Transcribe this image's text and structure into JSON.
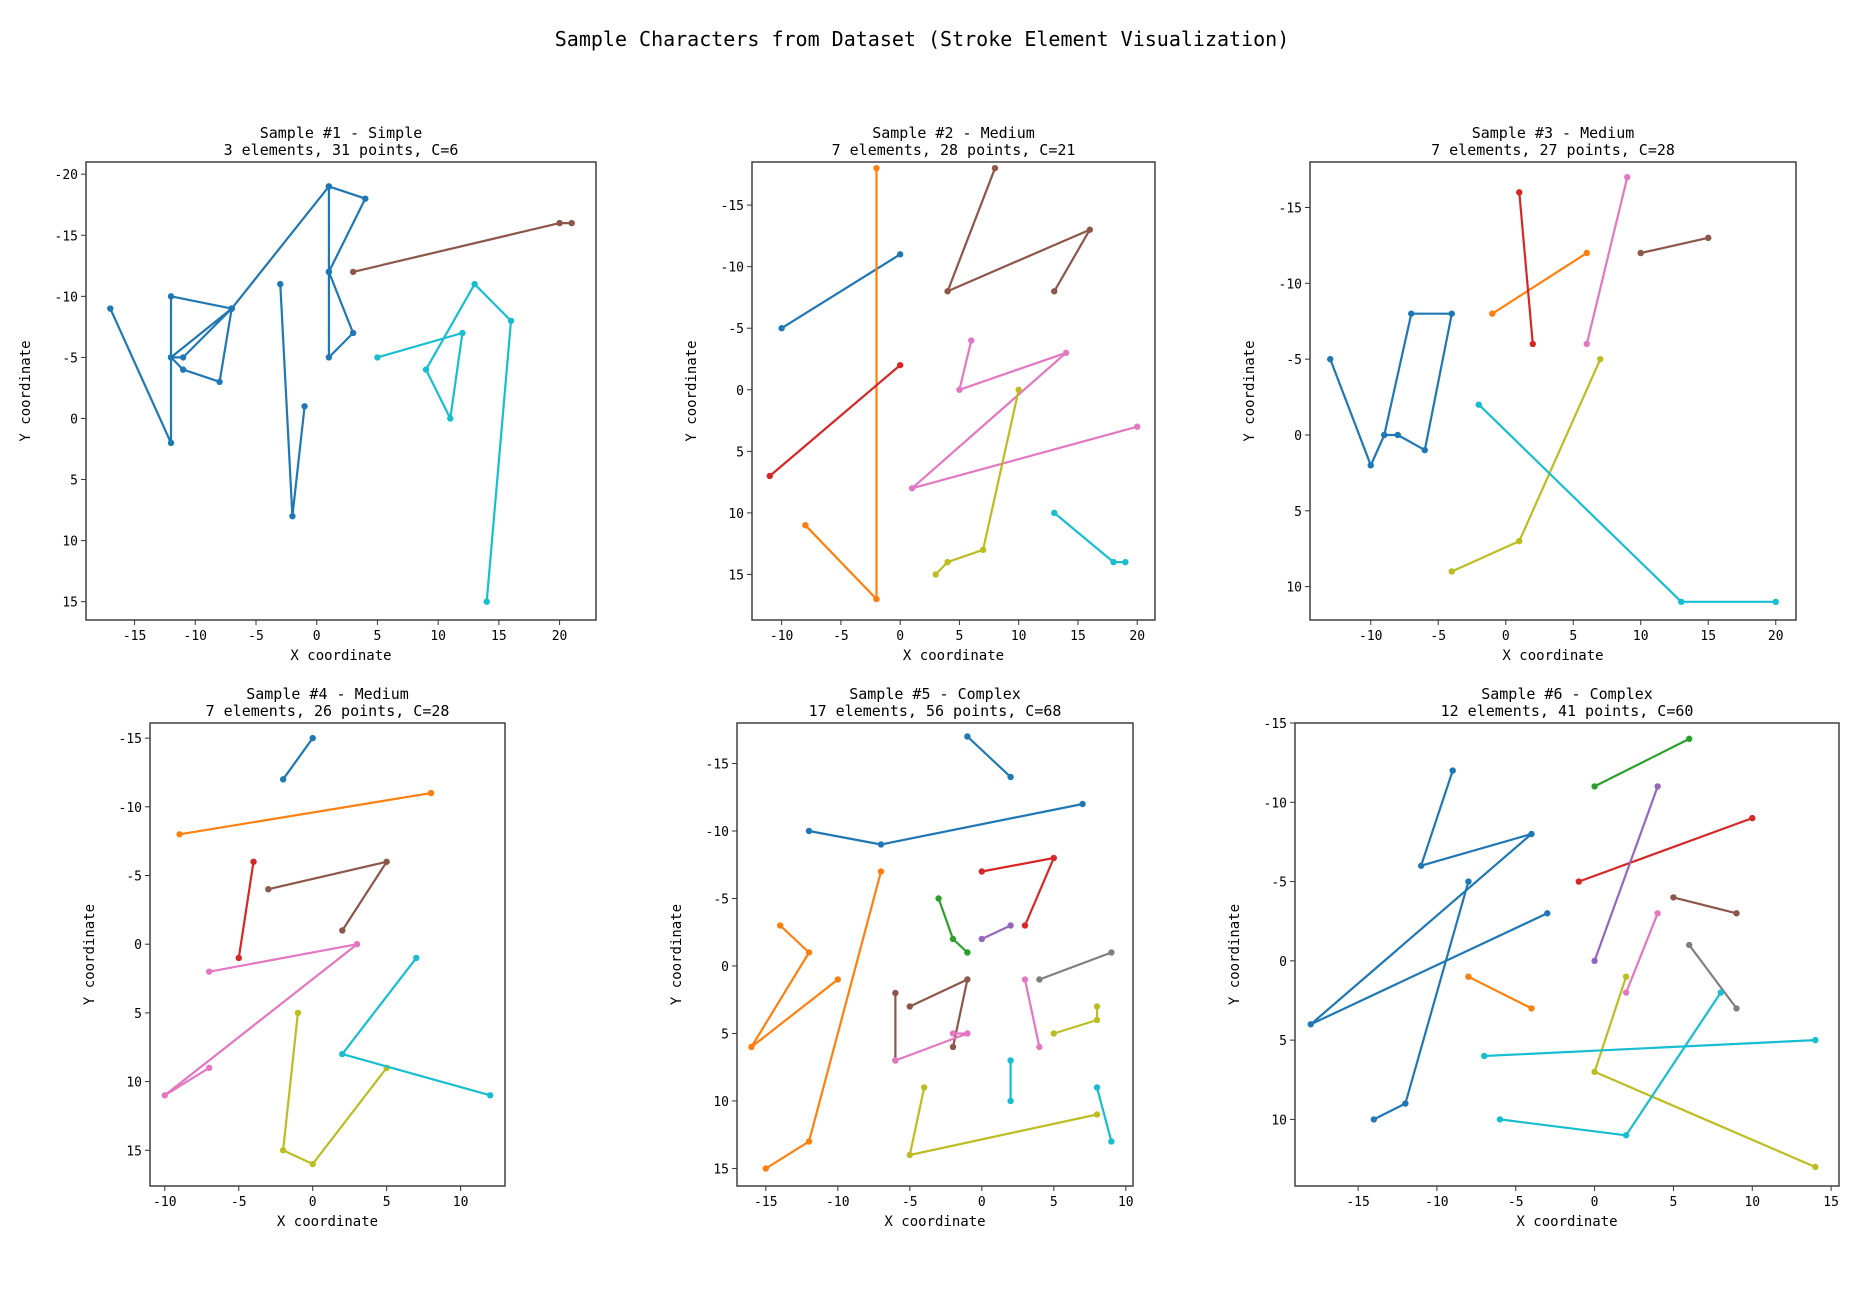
{
  "figure": {
    "title": "Sample Characters from Dataset (Stroke Element Visualization)"
  },
  "chart_data": [
    {
      "type": "line",
      "title": "Sample #1 - Simple",
      "subtitle": "3 elements, 31 points, C=6",
      "xlabel": "X coordinate",
      "ylabel": "Y coordinate",
      "xlim": [
        -19,
        23
      ],
      "ylim": [
        -21,
        16.5
      ],
      "y_inverted": true,
      "xticks": [
        -15,
        -10,
        -5,
        0,
        5,
        10,
        15,
        20
      ],
      "yticks": [
        -20,
        -15,
        -10,
        -5,
        0,
        5,
        10,
        15
      ],
      "series": [
        {
          "color": "#1f77b4",
          "points": [
            [
              -17,
              -9
            ],
            [
              -12,
              2
            ],
            [
              -12,
              -10
            ],
            [
              -7,
              -9
            ],
            [
              -12,
              -5
            ],
            [
              -11,
              -5
            ],
            [
              -7,
              -9
            ],
            [
              1,
              -19
            ],
            [
              4,
              -18
            ],
            [
              1,
              -12
            ],
            [
              1,
              -5
            ],
            [
              3,
              -7
            ],
            [
              1,
              -12
            ],
            [
              1,
              -19
            ],
            [
              -7,
              -9
            ],
            [
              -8,
              -3
            ],
            [
              -11,
              -4
            ],
            [
              -12,
              -5
            ]
          ]
        },
        {
          "color": "#1f77b4",
          "points": [
            [
              -3,
              -11
            ],
            [
              -2,
              8
            ],
            [
              -1,
              -1
            ]
          ]
        },
        {
          "color": "#17becf",
          "points": [
            [
              5,
              -5
            ],
            [
              12,
              -7
            ],
            [
              11,
              0
            ],
            [
              9,
              -4
            ],
            [
              13,
              -11
            ],
            [
              16,
              -8
            ],
            [
              14,
              15
            ]
          ]
        },
        {
          "color": "#8c564b",
          "points": [
            [
              3,
              -12
            ],
            [
              20,
              -16
            ],
            [
              21,
              -16
            ]
          ]
        }
      ]
    },
    {
      "type": "line",
      "title": "Sample #2 - Medium",
      "subtitle": "7 elements, 28 points, C=21",
      "xlabel": "X coordinate",
      "ylabel": "Y coordinate",
      "xlim": [
        -12.5,
        21.5
      ],
      "ylim": [
        -18.5,
        18.7
      ],
      "y_inverted": true,
      "xticks": [
        -10,
        -5,
        0,
        5,
        10,
        15,
        20
      ],
      "yticks": [
        -15,
        -10,
        -5,
        0,
        5,
        10,
        15
      ],
      "series": [
        {
          "color": "#1f77b4",
          "points": [
            [
              -10,
              -5
            ],
            [
              0,
              -11
            ]
          ]
        },
        {
          "color": "#ff7f0e",
          "points": [
            [
              -2,
              -18
            ],
            [
              -2,
              17
            ],
            [
              -8,
              11
            ]
          ]
        },
        {
          "color": "#d62728",
          "points": [
            [
              -11,
              7
            ],
            [
              0,
              -2
            ]
          ]
        },
        {
          "color": "#8c564b",
          "points": [
            [
              8,
              -18
            ],
            [
              4,
              -8
            ],
            [
              16,
              -13
            ],
            [
              13,
              -8
            ]
          ]
        },
        {
          "color": "#e377c2",
          "points": [
            [
              6,
              -4
            ],
            [
              5,
              0
            ],
            [
              14,
              -3
            ],
            [
              1,
              8
            ],
            [
              20,
              3
            ]
          ]
        },
        {
          "color": "#bcbd22",
          "points": [
            [
              10,
              0
            ],
            [
              7,
              13
            ],
            [
              4,
              14
            ],
            [
              3,
              15
            ]
          ]
        },
        {
          "color": "#17becf",
          "points": [
            [
              13,
              10
            ],
            [
              18,
              14
            ],
            [
              19,
              14
            ]
          ]
        }
      ]
    },
    {
      "type": "line",
      "title": "Sample #3 - Medium",
      "subtitle": "7 elements, 27 points, C=28",
      "xlabel": "X coordinate",
      "ylabel": "Y coordinate",
      "xlim": [
        -14.5,
        21.5
      ],
      "ylim": [
        -18,
        12.2
      ],
      "y_inverted": true,
      "xticks": [
        -10,
        -5,
        0,
        5,
        10,
        15,
        20
      ],
      "yticks": [
        -15,
        -10,
        -5,
        0,
        5,
        10
      ],
      "series": [
        {
          "color": "#1f77b4",
          "points": [
            [
              -13,
              -5
            ],
            [
              -10,
              2
            ],
            [
              -9,
              0
            ],
            [
              -7,
              -8
            ],
            [
              -4,
              -8
            ],
            [
              -6,
              1
            ],
            [
              -8,
              0
            ],
            [
              -9,
              0
            ]
          ]
        },
        {
          "color": "#ff7f0e",
          "points": [
            [
              -1,
              -8
            ],
            [
              6,
              -12
            ]
          ]
        },
        {
          "color": "#d62728",
          "points": [
            [
              1,
              -16
            ],
            [
              2,
              -6
            ]
          ]
        },
        {
          "color": "#e377c2",
          "points": [
            [
              6,
              -6
            ],
            [
              9,
              -17
            ]
          ]
        },
        {
          "color": "#8c564b",
          "points": [
            [
              10,
              -12
            ],
            [
              15,
              -13
            ]
          ]
        },
        {
          "color": "#bcbd22",
          "points": [
            [
              -4,
              9
            ],
            [
              1,
              7
            ],
            [
              7,
              -5
            ]
          ]
        },
        {
          "color": "#17becf",
          "points": [
            [
              -2,
              -2
            ],
            [
              13,
              11
            ],
            [
              20,
              11
            ]
          ]
        }
      ]
    },
    {
      "type": "line",
      "title": "Sample #4 - Medium",
      "subtitle": "7 elements, 26 points, C=28",
      "xlabel": "X coordinate",
      "ylabel": "Y coordinate",
      "xlim": [
        -11,
        13
      ],
      "ylim": [
        -16.1,
        17.6
      ],
      "y_inverted": true,
      "xticks": [
        -10,
        -5,
        0,
        5,
        10
      ],
      "yticks": [
        -15,
        -10,
        -5,
        0,
        5,
        10,
        15
      ],
      "series": [
        {
          "color": "#1f77b4",
          "points": [
            [
              -2,
              -12
            ],
            [
              0,
              -15
            ]
          ]
        },
        {
          "color": "#ff7f0e",
          "points": [
            [
              -9,
              -8
            ],
            [
              8,
              -11
            ]
          ]
        },
        {
          "color": "#d62728",
          "points": [
            [
              -4,
              -6
            ],
            [
              -5,
              1
            ]
          ]
        },
        {
          "color": "#8c564b",
          "points": [
            [
              -3,
              -4
            ],
            [
              5,
              -6
            ],
            [
              2,
              -1
            ]
          ]
        },
        {
          "color": "#e377c2",
          "points": [
            [
              -7,
              2
            ],
            [
              3,
              0
            ],
            [
              -10,
              11
            ],
            [
              -7,
              9
            ]
          ]
        },
        {
          "color": "#bcbd22",
          "points": [
            [
              -1,
              5
            ],
            [
              -2,
              15
            ],
            [
              0,
              16
            ],
            [
              5,
              9
            ]
          ]
        },
        {
          "color": "#17becf",
          "points": [
            [
              7,
              1
            ],
            [
              2,
              8
            ],
            [
              12,
              11
            ]
          ]
        }
      ]
    },
    {
      "type": "line",
      "title": "Sample #5 - Complex",
      "subtitle": "17 elements, 56 points, C=68",
      "xlabel": "X coordinate",
      "ylabel": "Y coordinate",
      "xlim": [
        -17,
        10.5
      ],
      "ylim": [
        -18,
        16.3
      ],
      "y_inverted": true,
      "xticks": [
        -15,
        -10,
        -5,
        0,
        5,
        10
      ],
      "yticks": [
        -15,
        -10,
        -5,
        0,
        5,
        10,
        15
      ],
      "series": [
        {
          "color": "#1f77b4",
          "points": [
            [
              -1,
              -17
            ],
            [
              2,
              -14
            ]
          ]
        },
        {
          "color": "#1f77b4",
          "points": [
            [
              -12,
              -10
            ],
            [
              -7,
              -9
            ],
            [
              7,
              -12
            ]
          ]
        },
        {
          "color": "#ff7f0e",
          "points": [
            [
              -14,
              -3
            ],
            [
              -12,
              -1
            ],
            [
              -16,
              6
            ],
            [
              -10,
              1
            ]
          ]
        },
        {
          "color": "#ff7f0e",
          "points": [
            [
              -7,
              -7
            ],
            [
              -12,
              13
            ],
            [
              -15,
              15
            ]
          ]
        },
        {
          "color": "#2ca02c",
          "points": [
            [
              -3,
              -5
            ],
            [
              -2,
              -2
            ],
            [
              -1,
              -1
            ]
          ]
        },
        {
          "color": "#d62728",
          "points": [
            [
              0,
              -7
            ],
            [
              5,
              -8
            ],
            [
              3,
              -3
            ]
          ]
        },
        {
          "color": "#9467bd",
          "points": [
            [
              0,
              -2
            ],
            [
              2,
              -3
            ]
          ]
        },
        {
          "color": "#8c564b",
          "points": [
            [
              -6,
              2
            ],
            [
              -6,
              7
            ]
          ]
        },
        {
          "color": "#8c564b",
          "points": [
            [
              -5,
              3
            ],
            [
              -1,
              1
            ],
            [
              -2,
              6
            ]
          ]
        },
        {
          "color": "#e377c2",
          "points": [
            [
              -6,
              7
            ],
            [
              -1,
              5
            ],
            [
              -2,
              5
            ]
          ]
        },
        {
          "color": "#e377c2",
          "points": [
            [
              3,
              1
            ],
            [
              4,
              6
            ]
          ]
        },
        {
          "color": "#7f7f7f",
          "points": [
            [
              4,
              1
            ],
            [
              9,
              -1
            ]
          ]
        },
        {
          "color": "#bcbd22",
          "points": [
            [
              8,
              3
            ],
            [
              8,
              4
            ],
            [
              5,
              5
            ]
          ]
        },
        {
          "color": "#bcbd22",
          "points": [
            [
              -4,
              9
            ],
            [
              -5,
              14
            ],
            [
              8,
              11
            ]
          ]
        },
        {
          "color": "#17becf",
          "points": [
            [
              2,
              7
            ],
            [
              2,
              10
            ]
          ]
        },
        {
          "color": "#17becf",
          "points": [
            [
              8,
              9
            ],
            [
              9,
              13
            ]
          ]
        }
      ]
    },
    {
      "type": "line",
      "title": "Sample #6 - Complex",
      "subtitle": "12 elements, 41 points, C=60",
      "xlabel": "X coordinate",
      "ylabel": "Y coordinate",
      "xlim": [
        -19,
        15.5
      ],
      "ylim": [
        -15,
        14.2
      ],
      "y_inverted": true,
      "xticks": [
        -15,
        -10,
        -5,
        0,
        5,
        10,
        15
      ],
      "yticks": [
        -15,
        -10,
        -5,
        0,
        5,
        10
      ],
      "series": [
        {
          "color": "#1f77b4",
          "points": [
            [
              -9,
              -12
            ],
            [
              -11,
              -6
            ],
            [
              -4,
              -8
            ],
            [
              -18,
              4
            ],
            [
              -3,
              -3
            ]
          ]
        },
        {
          "color": "#1f77b4",
          "points": [
            [
              -14,
              10
            ],
            [
              -12,
              9
            ],
            [
              -8,
              -5
            ]
          ]
        },
        {
          "color": "#2ca02c",
          "points": [
            [
              0,
              -11
            ],
            [
              6,
              -14
            ]
          ]
        },
        {
          "color": "#d62728",
          "points": [
            [
              -1,
              -5
            ],
            [
              10,
              -9
            ]
          ]
        },
        {
          "color": "#9467bd",
          "points": [
            [
              0,
              0
            ],
            [
              4,
              -11
            ]
          ]
        },
        {
          "color": "#8c564b",
          "points": [
            [
              5,
              -4
            ],
            [
              9,
              -3
            ]
          ]
        },
        {
          "color": "#ff7f0e",
          "points": [
            [
              -8,
              1
            ],
            [
              -4,
              3
            ]
          ]
        },
        {
          "color": "#e377c2",
          "points": [
            [
              2,
              2
            ],
            [
              4,
              -3
            ]
          ]
        },
        {
          "color": "#7f7f7f",
          "points": [
            [
              6,
              -1
            ],
            [
              9,
              3
            ]
          ]
        },
        {
          "color": "#bcbd22",
          "points": [
            [
              2,
              1
            ],
            [
              0,
              7
            ],
            [
              14,
              13
            ]
          ]
        },
        {
          "color": "#17becf",
          "points": [
            [
              -7,
              6
            ],
            [
              14,
              5
            ]
          ]
        },
        {
          "color": "#17becf",
          "points": [
            [
              -6,
              10
            ],
            [
              2,
              11
            ],
            [
              8,
              2
            ]
          ]
        }
      ]
    }
  ]
}
